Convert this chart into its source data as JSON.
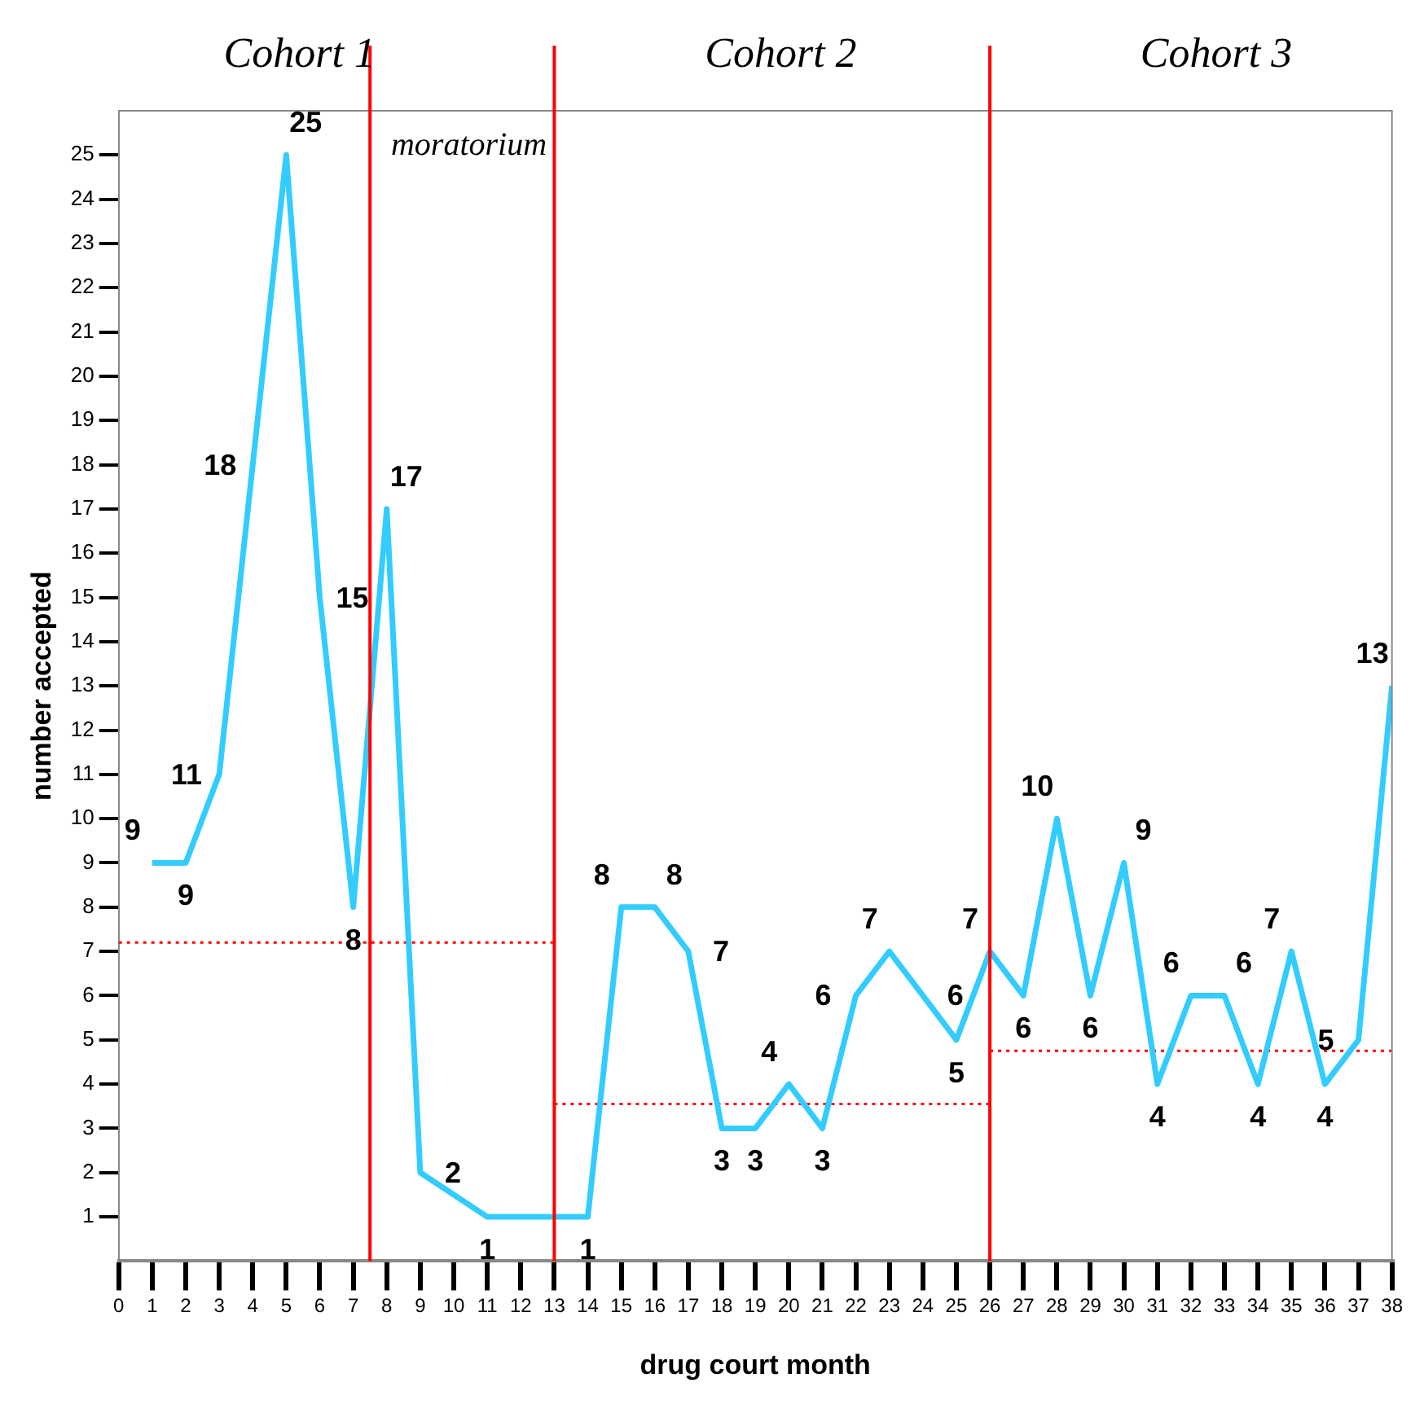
{
  "chart_data": {
    "type": "line",
    "xlabel": "drug court month",
    "ylabel": "number accepted",
    "xlim": [
      0,
      38
    ],
    "ylim": [
      0,
      26
    ],
    "xticks": [
      0,
      1,
      2,
      3,
      4,
      5,
      6,
      7,
      8,
      9,
      10,
      11,
      12,
      13,
      14,
      15,
      16,
      17,
      18,
      19,
      20,
      21,
      22,
      23,
      24,
      25,
      26,
      27,
      28,
      29,
      30,
      31,
      32,
      33,
      34,
      35,
      36,
      37,
      38
    ],
    "yticks": [
      1,
      2,
      3,
      4,
      5,
      6,
      7,
      8,
      9,
      10,
      11,
      12,
      13,
      14,
      15,
      16,
      17,
      18,
      19,
      20,
      21,
      22,
      23,
      24,
      25
    ],
    "series": [
      {
        "color": "#33ccff",
        "line_style": "solid",
        "x": [
          1,
          2,
          3,
          4,
          5,
          6,
          7,
          8,
          9,
          11,
          12,
          13,
          14,
          15,
          16,
          17,
          18,
          19,
          20,
          21,
          22,
          23,
          24,
          25,
          26,
          27,
          28,
          29,
          30,
          31,
          32,
          33,
          34,
          35,
          36,
          37,
          38
        ],
        "values": [
          9,
          9,
          11,
          18,
          25,
          15,
          8,
          17,
          2,
          1,
          1,
          1,
          1,
          8,
          8,
          7,
          3,
          3,
          4,
          3,
          6,
          7,
          6,
          5,
          7,
          6,
          10,
          6,
          9,
          4,
          6,
          6,
          4,
          7,
          4,
          5,
          13
        ],
        "value_labels": [
          "9",
          "9",
          "11",
          "18",
          "25",
          "15",
          "8",
          "17",
          "2",
          "1",
          null,
          null,
          "1",
          "8",
          "8",
          "7",
          "3",
          "3",
          "4",
          "3",
          "6",
          "7",
          "6",
          "5",
          "7",
          "6",
          "10",
          "6",
          "9",
          "4",
          "6",
          "6",
          "4",
          "7",
          "4",
          "5",
          "13"
        ]
      },
      {
        "color": "#ff0000",
        "line_style": "dotted",
        "x": [
          0,
          13
        ],
        "values": [
          7.2,
          7.2
        ]
      },
      {
        "color": "#ff0000",
        "line_style": "dotted",
        "x": [
          13,
          26
        ],
        "values": [
          3.55,
          3.55
        ]
      },
      {
        "color": "#ff0000",
        "line_style": "dotted",
        "x": [
          26,
          38
        ],
        "values": [
          4.75,
          4.75
        ]
      }
    ],
    "ref_lines": [
      {
        "axis": "x",
        "value": 7.5,
        "color": "#ff0000"
      },
      {
        "axis": "x",
        "value": 13,
        "color": "#ff0000"
      },
      {
        "axis": "x",
        "value": 26,
        "color": "#ff0000"
      }
    ],
    "annotations": [
      "Cohort 1",
      "Cohort 2",
      "Cohort 3",
      "moratorium"
    ],
    "marker": "none",
    "grid": false,
    "legend": false
  }
}
